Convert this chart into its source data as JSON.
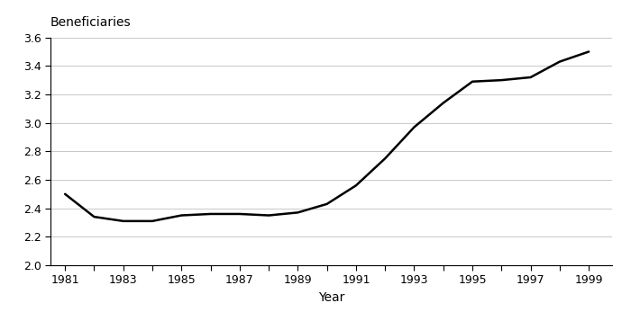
{
  "years": [
    1981,
    1982,
    1983,
    1984,
    1985,
    1986,
    1987,
    1988,
    1989,
    1990,
    1991,
    1992,
    1993,
    1994,
    1995,
    1996,
    1997,
    1998,
    1999
  ],
  "values": [
    2.5,
    2.34,
    2.31,
    2.31,
    2.35,
    2.36,
    2.36,
    2.35,
    2.37,
    2.43,
    2.56,
    2.75,
    2.97,
    3.14,
    3.29,
    3.3,
    3.32,
    3.43,
    3.5
  ],
  "title": "Beneficiaries",
  "xlabel": "Year",
  "ylim": [
    2.0,
    3.6
  ],
  "xlim": [
    1980.5,
    1999.8
  ],
  "yticks": [
    2.0,
    2.2,
    2.4,
    2.6,
    2.8,
    3.0,
    3.2,
    3.4,
    3.6
  ],
  "xtick_labels": [
    1981,
    1983,
    1985,
    1987,
    1989,
    1991,
    1993,
    1995,
    1997,
    1999
  ],
  "xtick_all": [
    1981,
    1982,
    1983,
    1984,
    1985,
    1986,
    1987,
    1988,
    1989,
    1990,
    1991,
    1992,
    1993,
    1994,
    1995,
    1996,
    1997,
    1998,
    1999
  ],
  "line_color": "#000000",
  "line_width": 1.8,
  "background_color": "#ffffff",
  "grid_color": "#c8c8c8"
}
